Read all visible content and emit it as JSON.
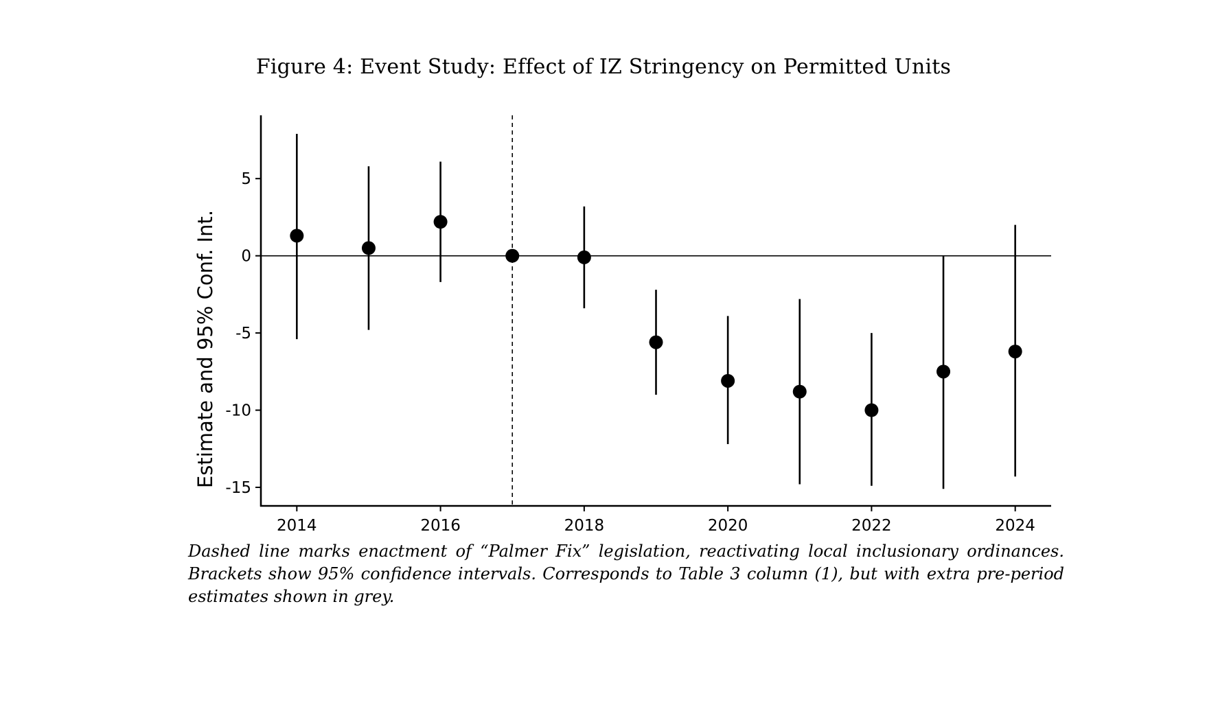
{
  "figure": {
    "title": "Figure 4: Event Study: Effect of IZ Stringency on Permitted Units",
    "caption": "Dashed line marks enactment of “Palmer Fix” legislation, reactivating local inclusionary ordinances. Brackets show 95% confidence intervals.  Corresponds to Table 3 column (1), but with extra pre-period estimates shown in grey."
  },
  "chart_data": {
    "type": "scatter",
    "title": "",
    "xlabel": "",
    "ylabel": "Estimate and 95% Conf. Int.",
    "xlim": [
      2013.5,
      2024.5
    ],
    "ylim": [
      -16.2,
      9.1
    ],
    "x_ticks": [
      2014,
      2016,
      2018,
      2020,
      2022,
      2024
    ],
    "y_ticks": [
      5,
      0,
      -5,
      -10,
      -15
    ],
    "x_tick_labels": [
      "2014",
      "2016",
      "2018",
      "2020",
      "2022",
      "2024"
    ],
    "y_tick_labels": [
      "5",
      "0",
      "-5",
      "-10",
      "-15"
    ],
    "reference_hline": 0,
    "reference_vline": 2017,
    "grid": false,
    "points": [
      {
        "x": 2014,
        "estimate": 1.3,
        "ci_low": -5.4,
        "ci_high": 7.9
      },
      {
        "x": 2015,
        "estimate": 0.5,
        "ci_low": -4.8,
        "ci_high": 5.8
      },
      {
        "x": 2016,
        "estimate": 2.2,
        "ci_low": -1.7,
        "ci_high": 6.1
      },
      {
        "x": 2017,
        "estimate": 0.0,
        "ci_low": 0.0,
        "ci_high": 0.0
      },
      {
        "x": 2018,
        "estimate": -0.1,
        "ci_low": -3.4,
        "ci_high": 3.2
      },
      {
        "x": 2019,
        "estimate": -5.6,
        "ci_low": -9.0,
        "ci_high": -2.2
      },
      {
        "x": 2020,
        "estimate": -8.1,
        "ci_low": -12.2,
        "ci_high": -3.9
      },
      {
        "x": 2021,
        "estimate": -8.8,
        "ci_low": -14.8,
        "ci_high": -2.8
      },
      {
        "x": 2022,
        "estimate": -10.0,
        "ci_low": -14.9,
        "ci_high": -5.0
      },
      {
        "x": 2023,
        "estimate": -7.5,
        "ci_low": -15.1,
        "ci_high": 0.0
      },
      {
        "x": 2024,
        "estimate": -6.2,
        "ci_low": -14.3,
        "ci_high": 2.0
      }
    ],
    "colors": {
      "points": "#000000",
      "axes": "#000000"
    }
  }
}
